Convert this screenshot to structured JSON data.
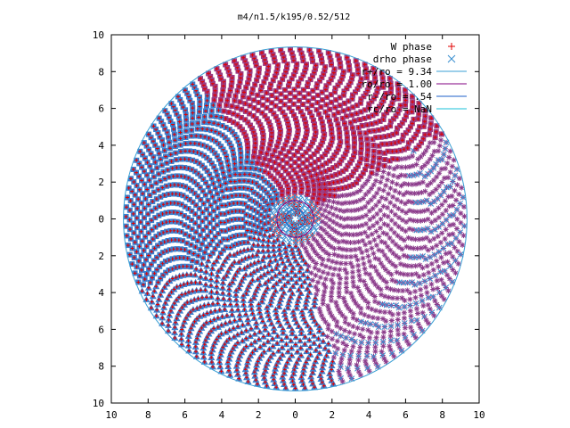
{
  "chart_data": {
    "type": "scatter",
    "title": "m4/n1.5/k195/0.52/512",
    "xlabel": "",
    "ylabel": "",
    "xlim": [
      -10,
      10
    ],
    "ylim": [
      -10,
      10
    ],
    "x_tick_labels": [
      "10",
      "8",
      "6",
      "4",
      "2",
      "0",
      "2",
      "4",
      "6",
      "8",
      "10"
    ],
    "y_tick_labels": [
      "10",
      "8",
      "6",
      "4",
      "2",
      "0",
      "2",
      "4",
      "6",
      "8",
      "10"
    ],
    "grid": false,
    "legend_position": "top-right",
    "series": [
      {
        "name": "W phase",
        "style": "plus",
        "color": "#e00000"
      },
      {
        "name": "drho phase",
        "style": "cross",
        "color": "#3a8fd0"
      }
    ],
    "circles": [
      {
        "label": "r+/ro = 9.34",
        "radius": 9.34,
        "color": "#3a9fd4"
      },
      {
        "label": "ro/ro = 1.00",
        "radius": 1.0,
        "color": "#800080"
      },
      {
        "label": "r-/ro = .54",
        "radius": 0.54,
        "color": "#1c5fc8"
      },
      {
        "label": "rc/ro = NaN",
        "radius": null,
        "color": "#18c0d8"
      }
    ],
    "spiral": {
      "arms": 4,
      "r_min": 0.3,
      "r_max": 9.2,
      "colors": {
        "square": "#9c3c82",
        "triangle": "#3a80cf",
        "star": "#8c3c8c",
        "cross": "#3a8fd0"
      }
    }
  }
}
